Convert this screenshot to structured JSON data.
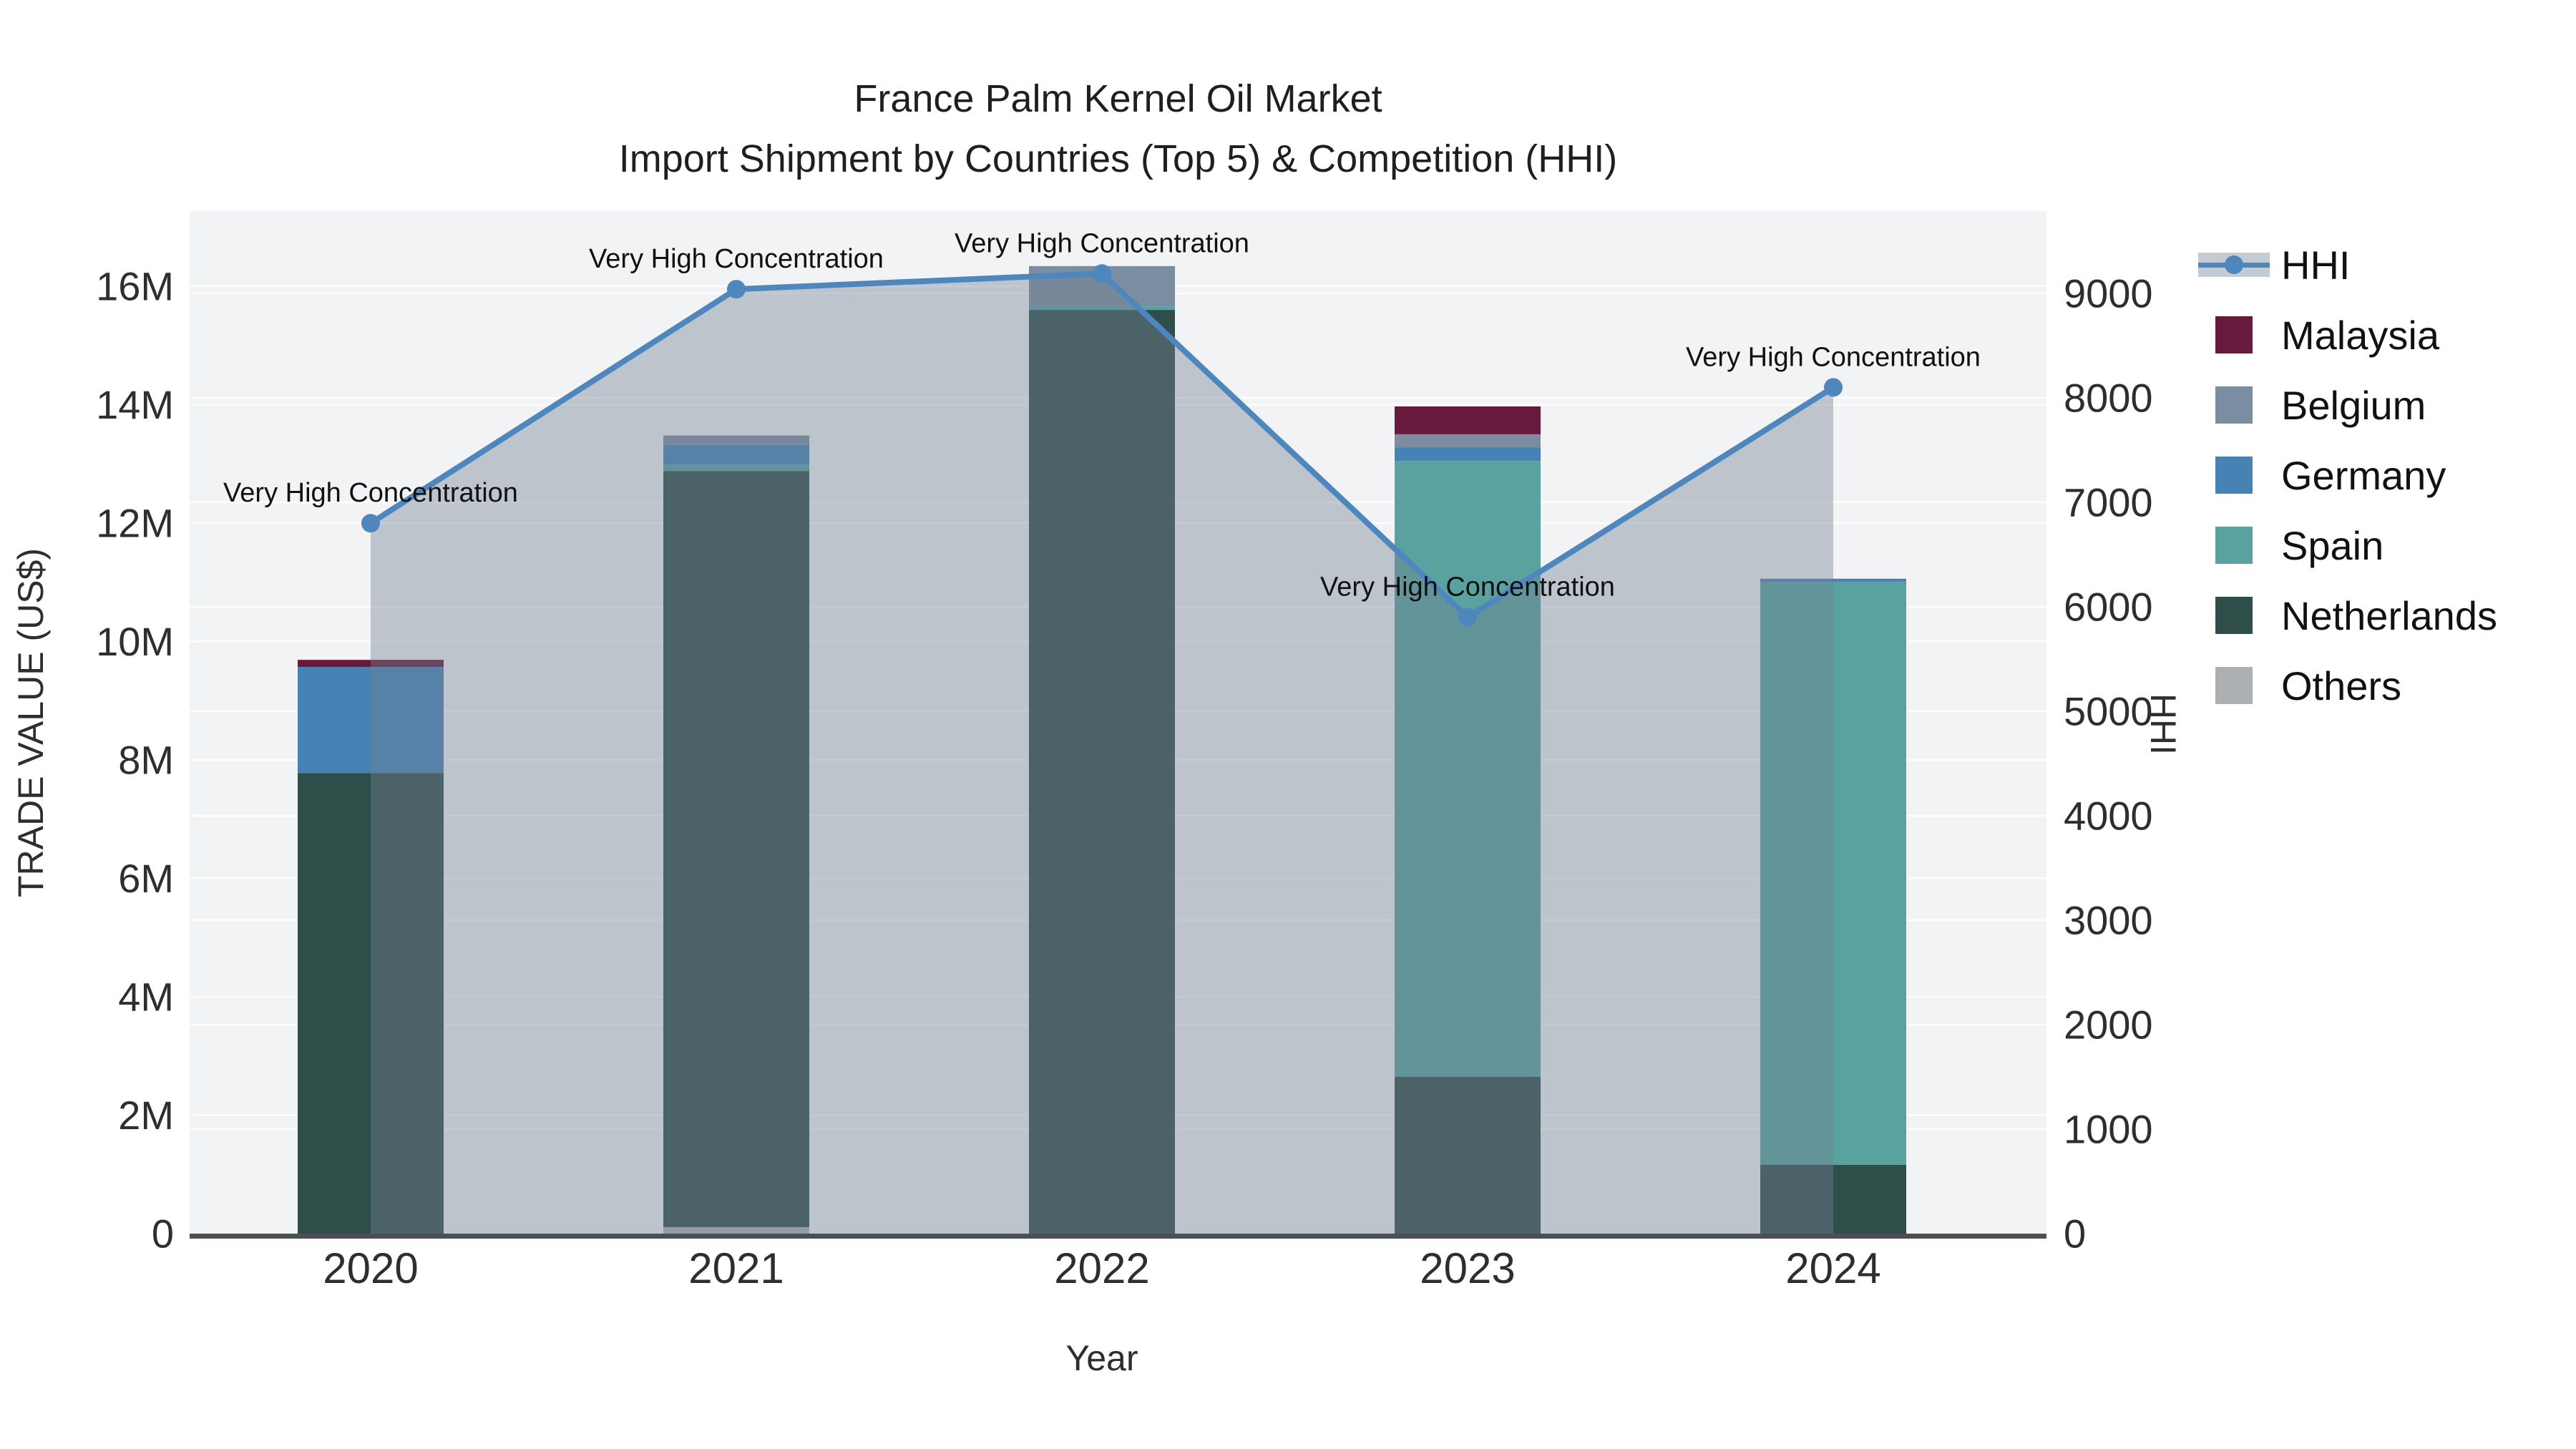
{
  "title": {
    "line1": "France Palm Kernel Oil Market",
    "line2": "Import Shipment by Countries (Top 5) & Competition (HHI)"
  },
  "axes": {
    "x_label": "Year",
    "y_left_label": "TRADE VALUE (US$)",
    "y_right_label": "HHI",
    "y_left_ticks": [
      {
        "label": "0",
        "value": 0
      },
      {
        "label": "2M",
        "value": 2
      },
      {
        "label": "4M",
        "value": 4
      },
      {
        "label": "6M",
        "value": 6
      },
      {
        "label": "8M",
        "value": 8
      },
      {
        "label": "10M",
        "value": 10
      },
      {
        "label": "12M",
        "value": 12
      },
      {
        "label": "14M",
        "value": 14
      },
      {
        "label": "16M",
        "value": 16
      }
    ],
    "y_right_ticks": [
      {
        "label": "0",
        "value": 0
      },
      {
        "label": "1000",
        "value": 1000
      },
      {
        "label": "2000",
        "value": 2000
      },
      {
        "label": "3000",
        "value": 3000
      },
      {
        "label": "4000",
        "value": 4000
      },
      {
        "label": "5000",
        "value": 5000
      },
      {
        "label": "6000",
        "value": 6000
      },
      {
        "label": "7000",
        "value": 7000
      },
      {
        "label": "8000",
        "value": 8000
      },
      {
        "label": "9000",
        "value": 9000
      }
    ]
  },
  "chart_data": {
    "type": "bar",
    "stacked": true,
    "categories": [
      "2020",
      "2021",
      "2022",
      "2023",
      "2024"
    ],
    "value_unit": "million US$",
    "ylim_left_millions": [
      0,
      16
    ],
    "ylim_right": [
      0,
      9000
    ],
    "grid": true,
    "legend_position": "right",
    "series": [
      {
        "name": "Malaysia",
        "color": "#671a3c",
        "values": [
          0.12,
          0,
          0,
          0.47,
          0
        ]
      },
      {
        "name": "Belgium",
        "color": "#7b8da1",
        "values": [
          0,
          0.16,
          0.68,
          0.22,
          0
        ]
      },
      {
        "name": "Germany",
        "color": "#4682b4",
        "values": [
          1.79,
          0.33,
          0,
          0.23,
          0.05
        ]
      },
      {
        "name": "Spain",
        "color": "#59a29f",
        "values": [
          0,
          0.11,
          0.06,
          10.4,
          9.85
        ]
      },
      {
        "name": "Netherlands",
        "color": "#2f4d49",
        "values": [
          7.78,
          12.77,
          15.6,
          2.65,
          1.16
        ]
      },
      {
        "name": "Others",
        "color": "#adb0b2",
        "values": [
          0,
          0.11,
          0,
          0,
          0
        ]
      }
    ],
    "line_series": {
      "name": "HHI",
      "axis": "right",
      "color": "#4d87bd",
      "area_color": "rgba(115,128,147,0.41)",
      "values": [
        6800,
        9040,
        9190,
        5900,
        8100
      ]
    },
    "annotations": [
      {
        "category": "2020",
        "text": "Very High Concentration"
      },
      {
        "category": "2021",
        "text": "Very High Concentration"
      },
      {
        "category": "2022",
        "text": "Very High Concentration"
      },
      {
        "category": "2023",
        "text": "Very High Concentration"
      },
      {
        "category": "2024",
        "text": "Very High Concentration"
      }
    ]
  },
  "legend": {
    "items": [
      {
        "name": "HHI",
        "type": "line"
      },
      {
        "name": "Malaysia",
        "type": "swatch",
        "color": "#671a3c"
      },
      {
        "name": "Belgium",
        "type": "swatch",
        "color": "#7b8da1"
      },
      {
        "name": "Germany",
        "type": "swatch",
        "color": "#4682b4"
      },
      {
        "name": "Spain",
        "type": "swatch",
        "color": "#59a29f"
      },
      {
        "name": "Netherlands",
        "type": "swatch",
        "color": "#2f4d49"
      },
      {
        "name": "Others",
        "type": "swatch",
        "color": "#adb0b2"
      }
    ]
  },
  "style": {
    "plot_bg": "#f2f3f4",
    "grid_color": "#ffffff",
    "axis_line_color": "#4c5054",
    "tick_color": "#2e2e2e",
    "annotation_color": "#111111"
  }
}
